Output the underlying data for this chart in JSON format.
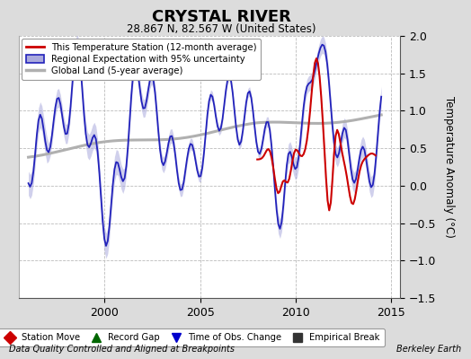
{
  "title": "CRYSTAL RIVER",
  "subtitle": "28.867 N, 82.567 W (United States)",
  "ylabel": "Temperature Anomaly (°C)",
  "xlabel_left": "Data Quality Controlled and Aligned at Breakpoints",
  "xlabel_right": "Berkeley Earth",
  "ylim": [
    -1.5,
    2.0
  ],
  "xlim_start": 1995.5,
  "xlim_end": 2015.5,
  "xticks": [
    2000,
    2005,
    2010,
    2015
  ],
  "yticks": [
    -1.5,
    -1.0,
    -0.5,
    0.0,
    0.5,
    1.0,
    1.5,
    2.0
  ],
  "bg_color": "#dcdcdc",
  "plot_bg_color": "#ffffff",
  "grid_color": "#bbbbbb",
  "regional_color": "#2222bb",
  "regional_fill_color": "#aaaadd",
  "station_color": "#cc0000",
  "global_color": "#b0b0b0",
  "legend1_labels": [
    "This Temperature Station (12-month average)",
    "Regional Expectation with 95% uncertainty",
    "Global Land (5-year average)"
  ],
  "legend2_labels": [
    "Station Move",
    "Record Gap",
    "Time of Obs. Change",
    "Empirical Break"
  ],
  "legend2_colors": [
    "#cc0000",
    "#006600",
    "#0000cc",
    "#333333"
  ],
  "legend2_markers": [
    "D",
    "^",
    "v",
    "s"
  ]
}
